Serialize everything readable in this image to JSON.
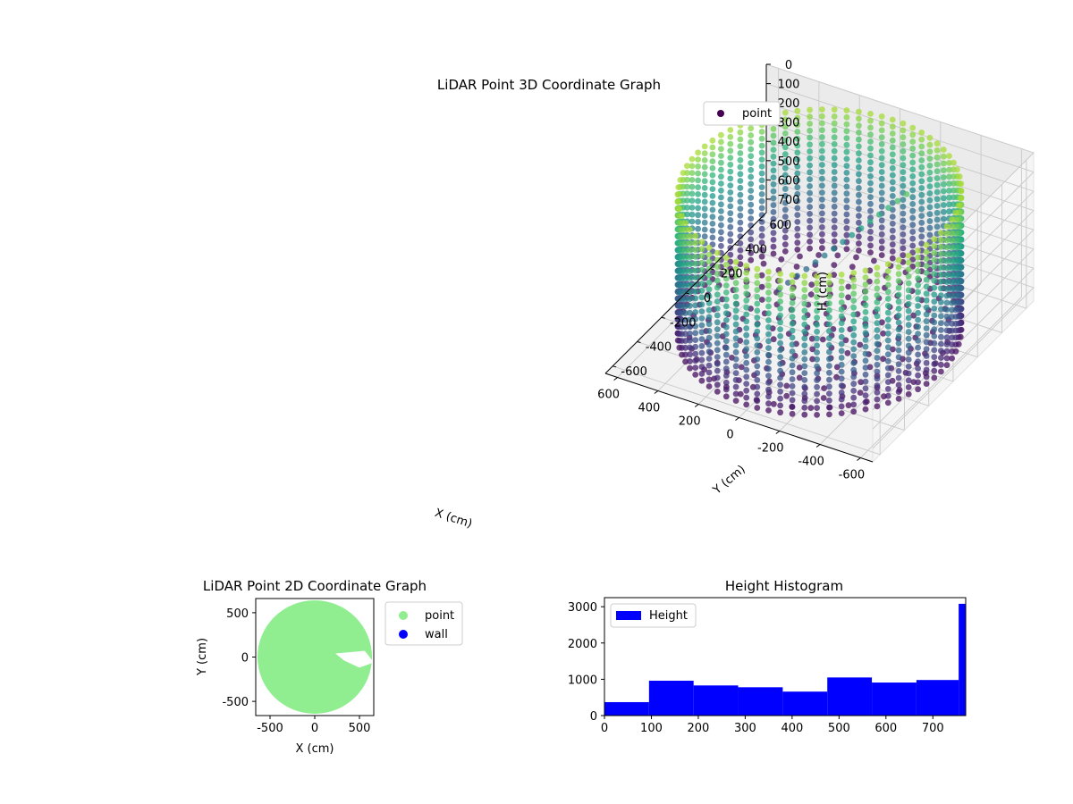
{
  "chart_data": [
    {
      "type": "scatter",
      "title": "LiDAR Point 3D Coordinate Graph",
      "xlabel": "X (cm)",
      "ylabel": "Y (cm)",
      "zlabel": "H (cm)",
      "xlim": [
        -660,
        660
      ],
      "ylim": [
        -660,
        660
      ],
      "zlim": [
        0,
        770
      ],
      "z_inverted": true,
      "x_ticks": [
        "-600",
        "-400",
        "-200",
        "0",
        "200",
        "400",
        "600"
      ],
      "y_ticks": [
        "-600",
        "-400",
        "-200",
        "0",
        "200",
        "400",
        "600"
      ],
      "z_ticks": [
        "0",
        "100",
        "200",
        "300",
        "400",
        "500",
        "600",
        "700"
      ],
      "legend": [
        "point"
      ],
      "legend_position": "upper-right",
      "colormap": "viridis (color by height)",
      "colormap_low": "#440154",
      "colormap_high": "#b5de2b",
      "structure": {
        "wall_radius": 600,
        "wall_height_range": [
          0,
          770
        ],
        "floor_radius": 600,
        "floor_height": 770
      },
      "marker_color": "#440154",
      "grid": true
    },
    {
      "type": "scatter",
      "title": "LiDAR Point 2D Coordinate Graph",
      "xlabel": "X (cm)",
      "ylabel": "Y (cm)",
      "xlim": [
        -660,
        660
      ],
      "ylim": [
        -660,
        660
      ],
      "x_ticks": [
        "-500",
        "0",
        "500"
      ],
      "y_ticks": [
        "-500",
        "0",
        "500"
      ],
      "legend": [
        {
          "name": "point",
          "color": "#90ee90"
        },
        {
          "name": "wall",
          "color": "#0000ff"
        }
      ],
      "legend_position": "outside-right",
      "footprint_radius": 640
    },
    {
      "type": "bar",
      "title": "Height Histogram",
      "legend": [
        {
          "name": "Height",
          "color": "#0000ff"
        }
      ],
      "legend_position": "upper-left",
      "xlim": [
        0,
        770
      ],
      "ylim": [
        0,
        3250
      ],
      "x_ticks": [
        "0",
        "100",
        "200",
        "300",
        "400",
        "500",
        "600",
        "700"
      ],
      "y_ticks": [
        "0",
        "1000",
        "2000",
        "3000"
      ],
      "bins": [
        {
          "x0": 0,
          "x1": 95,
          "count": 370
        },
        {
          "x0": 95,
          "x1": 190,
          "count": 960
        },
        {
          "x0": 190,
          "x1": 285,
          "count": 830
        },
        {
          "x0": 285,
          "x1": 380,
          "count": 780
        },
        {
          "x0": 380,
          "x1": 475,
          "count": 660
        },
        {
          "x0": 475,
          "x1": 570,
          "count": 1050
        },
        {
          "x0": 570,
          "x1": 665,
          "count": 910
        },
        {
          "x0": 665,
          "x1": 755,
          "count": 980
        },
        {
          "x0": 755,
          "x1": 770,
          "count": 3080
        }
      ],
      "bar_color": "#0000ff"
    }
  ]
}
